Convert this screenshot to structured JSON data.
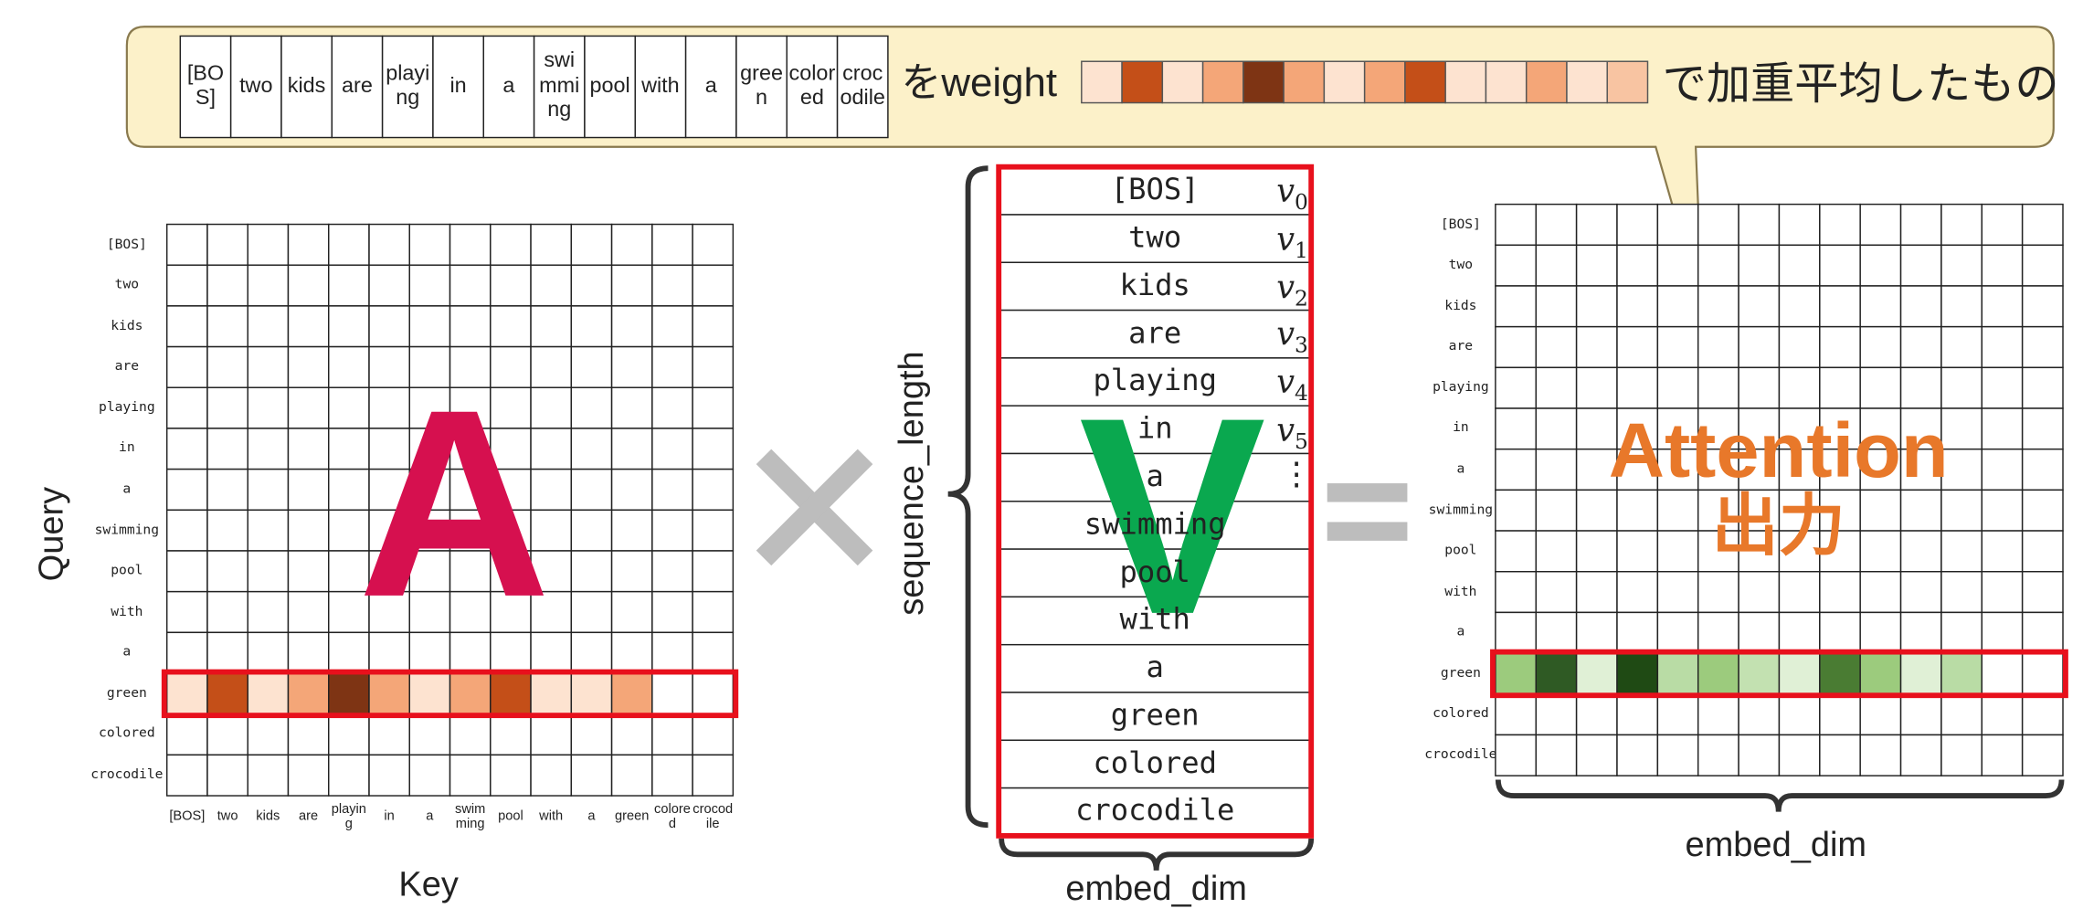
{
  "callout": {
    "tokens": [
      "[BOS]",
      "two",
      "kids",
      "are",
      "playing",
      "in",
      "a",
      "swimming",
      "pool",
      "with",
      "a",
      "green",
      "colored",
      "crocodile"
    ],
    "text_before": "をweight",
    "text_after": "で加重平均したもの",
    "weight_colors": [
      "#fde3d0",
      "#c44f18",
      "#fde3d0",
      "#f4a678",
      "#7e3414",
      "#f4a678",
      "#fde3d0",
      "#f4a678",
      "#c44f18",
      "#fde3d0",
      "#fde3d0",
      "#f4a678",
      "#fde3d0",
      "#f8c4a2"
    ]
  },
  "attention_matrix": {
    "big_letter": "A",
    "y_axis_label": "Query",
    "x_axis_label": "Key",
    "row_labels": [
      "[BOS]",
      "two",
      "kids",
      "are",
      "playing",
      "in",
      "a",
      "swimming",
      "pool",
      "with",
      "a",
      "green",
      "colored",
      "crocodile"
    ],
    "col_labels": [
      "[BOS]",
      "two",
      "kids",
      "are",
      "playing",
      "in",
      "a",
      "swimming",
      "pool",
      "with",
      "a",
      "green",
      "colored",
      "crocodile"
    ],
    "highlight_colors": [
      "#fde3d0",
      "#c44f18",
      "#fde3d0",
      "#f4a678",
      "#7e3414",
      "#f4a678",
      "#fde3d0",
      "#f4a678",
      "#c44f18",
      "#fde3d0",
      "#fde3d0",
      "#f4a678",
      "#ffffff",
      "#ffffff"
    ]
  },
  "value_matrix": {
    "big_letter": "V",
    "axis_label": "sequence_length",
    "bottom_label": "embed_dim",
    "tokens": [
      "[BOS]",
      "two",
      "kids",
      "are",
      "playing",
      "in",
      "a",
      "swimming",
      "pool",
      "with",
      "a",
      "green",
      "colored",
      "crocodile"
    ],
    "vector_symbol": "v",
    "vector_indices": [
      "0",
      "1",
      "2",
      "3",
      "4",
      "5"
    ],
    "ellipsis": "⋮"
  },
  "output_matrix": {
    "title_line1": "Attention",
    "title_line2": "出力",
    "bottom_label": "embed_dim",
    "row_labels": [
      "[BOS]",
      "two",
      "kids",
      "are",
      "playing",
      "in",
      "a",
      "swimming",
      "pool",
      "with",
      "a",
      "green",
      "colored",
      "crocodile"
    ],
    "highlight_colors": [
      "#9ccb7d",
      "#2f5a24",
      "#e0f0d6",
      "#1f4a14",
      "#b9dca5",
      "#9ccb7d",
      "#c3e1b1",
      "#e0f0d6",
      "#4a7c33",
      "#9ccb7d",
      "#e0f0d6",
      "#b9dca5",
      "#ffffff",
      "#ffffff"
    ]
  }
}
